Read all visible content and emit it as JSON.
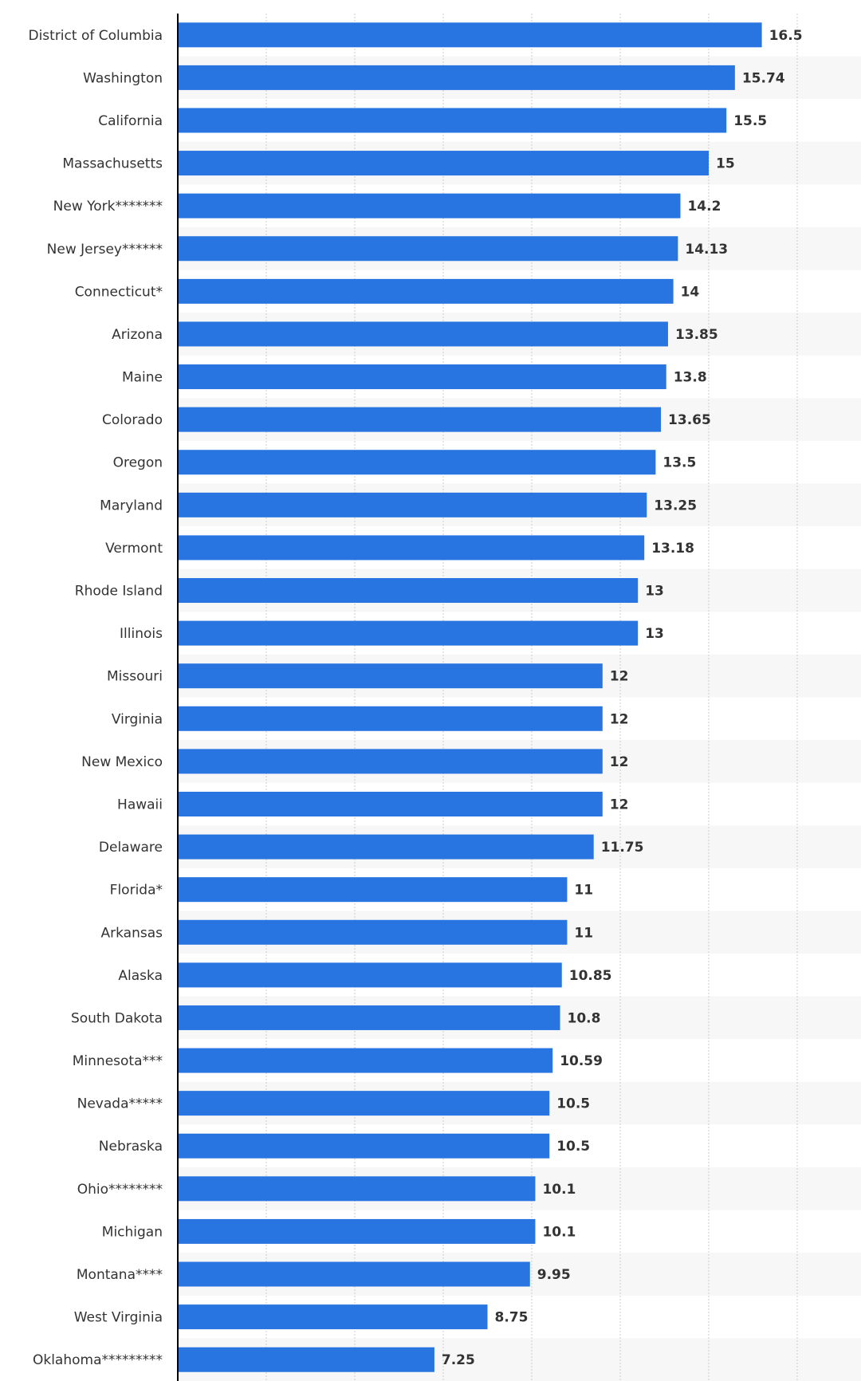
{
  "chart_data": {
    "type": "bar",
    "orientation": "horizontal",
    "categories": [
      "District of Columbia",
      "Washington",
      "California",
      "Massachusetts",
      "New York*******",
      "New Jersey******",
      "Connecticut*",
      "Arizona",
      "Maine",
      "Colorado",
      "Oregon",
      "Maryland",
      "Vermont",
      "Rhode Island",
      "Illinois",
      "Missouri",
      "Virginia",
      "New Mexico",
      "Hawaii",
      "Delaware",
      "Florida*",
      "Arkansas",
      "Alaska",
      "South Dakota",
      "Minnesota***",
      "Nevada*****",
      "Nebraska",
      "Ohio********",
      "Michigan",
      "Montana****",
      "West Virginia",
      "Oklahoma*********"
    ],
    "values": [
      16.5,
      15.74,
      15.5,
      15,
      14.2,
      14.13,
      14,
      13.85,
      13.8,
      13.65,
      13.5,
      13.25,
      13.18,
      13,
      13,
      12,
      12,
      12,
      12,
      11.75,
      11,
      11,
      10.85,
      10.8,
      10.59,
      10.5,
      10.5,
      10.1,
      10.1,
      9.95,
      8.75,
      7.25
    ],
    "value_labels": [
      "16.5",
      "15.74",
      "15.5",
      "15",
      "14.2",
      "14.13",
      "14",
      "13.85",
      "13.8",
      "13.65",
      "13.5",
      "13.25",
      "13.18",
      "13",
      "13",
      "12",
      "12",
      "12",
      "12",
      "11.75",
      "11",
      "11",
      "10.85",
      "10.8",
      "10.59",
      "10.5",
      "10.5",
      "10.1",
      "10.1",
      "9.95",
      "8.75",
      "7.25"
    ],
    "xlim": [
      0,
      17.5
    ],
    "grid": true,
    "gridline_step": 2.5,
    "tick_labels_shown": false,
    "title": "",
    "xlabel": "",
    "ylabel": "",
    "bar_color": "#2874e0",
    "band_color": "#f7f7f7",
    "grid_color": "#cccccc",
    "axis_color": "#000000",
    "text_color": "#333333"
  }
}
